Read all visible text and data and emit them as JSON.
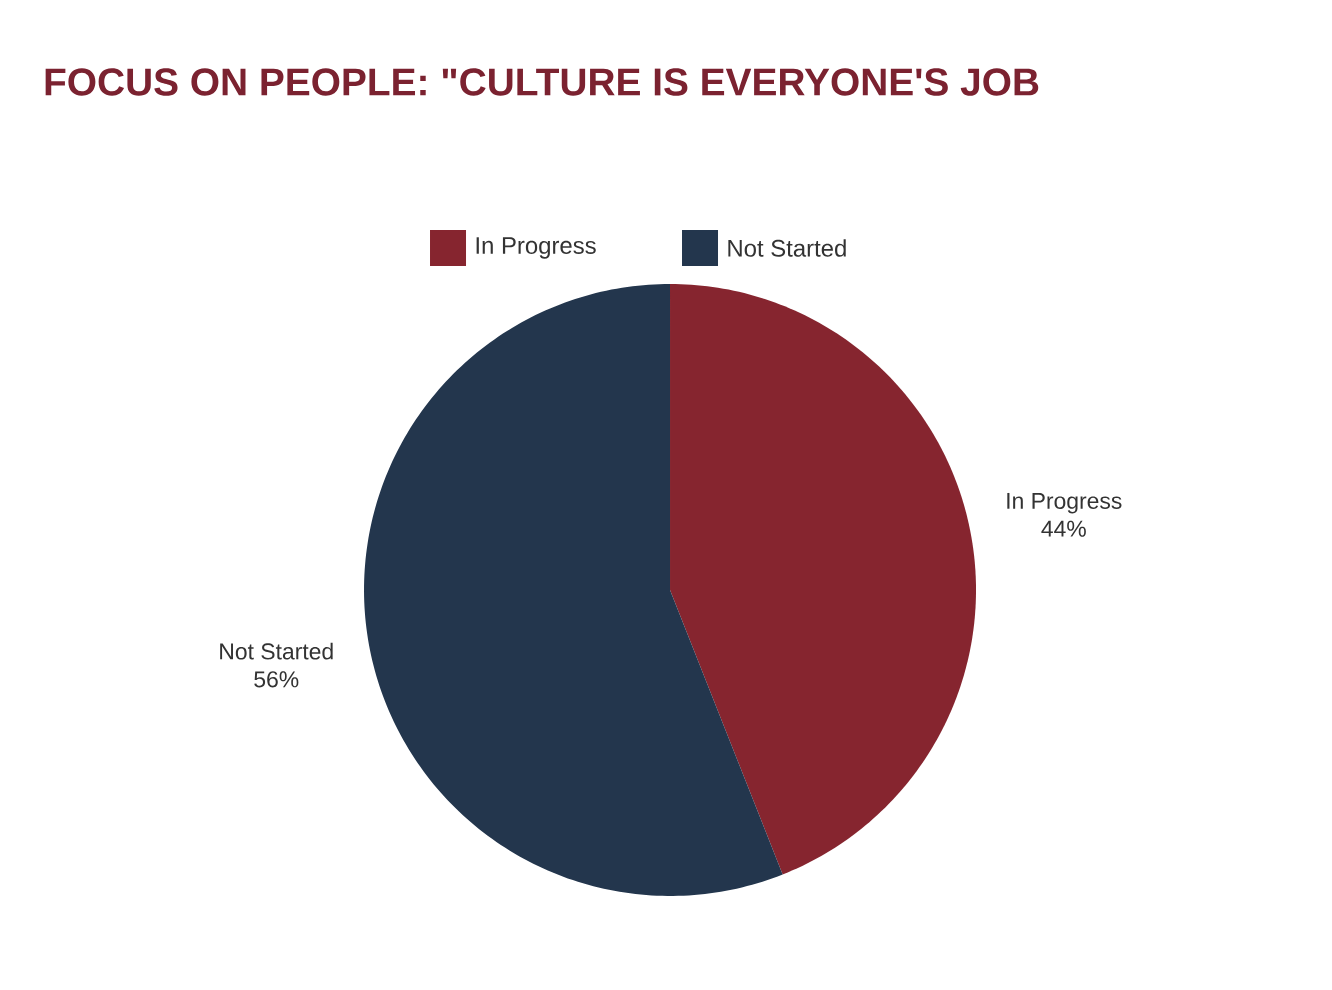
{
  "chart_data": {
    "type": "pie",
    "title": "FOCUS ON PEOPLE: \"CULTURE IS EVERYONE'S JOB",
    "categories": [
      "In Progress",
      "Not Started"
    ],
    "values": [
      44,
      56
    ],
    "colors": [
      "#86252f",
      "#23364d"
    ],
    "data_labels": true,
    "value_labels": [
      "44%",
      "56%"
    ],
    "legend": "top"
  }
}
